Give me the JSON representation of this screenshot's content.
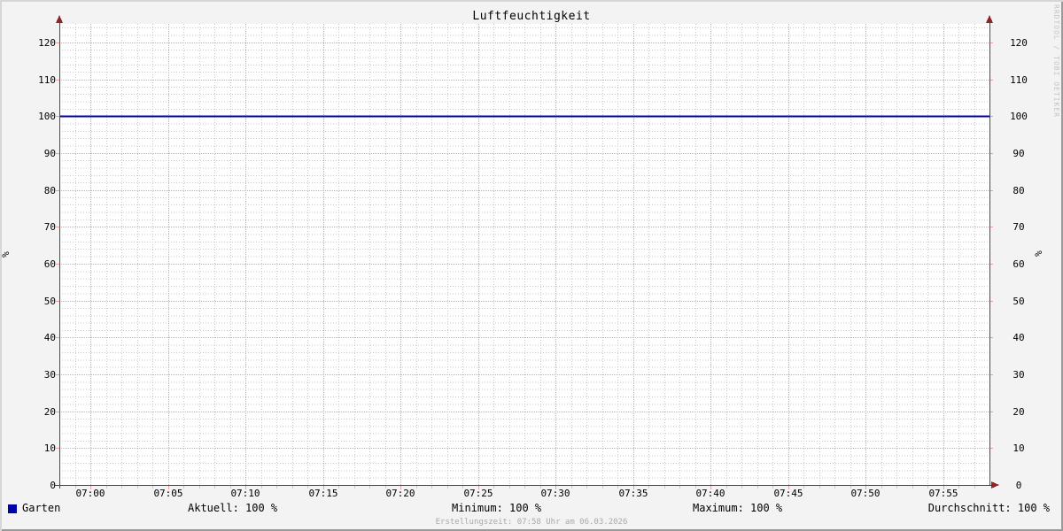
{
  "title": "Luftfeuchtigkeit",
  "watermark": "RRDTOOL / TOBI OETIKER",
  "footer": "Erstellungszeit: 07:58 Uhr am 06.03.2026",
  "legend": {
    "series": {
      "label": "Garten",
      "color": "#0000a8"
    },
    "stats": [
      {
        "label": "Aktuell",
        "value": "100 %",
        "text": "Aktuell: 100 %"
      },
      {
        "label": "Minimum",
        "value": "100 %",
        "text": "Minimum: 100 %"
      },
      {
        "label": "Maximum",
        "value": "100 %",
        "text": "Maximum: 100 %"
      },
      {
        "label": "Durchschnitt",
        "value": "100 %",
        "text": "Durchschnitt: 100 %"
      }
    ]
  },
  "chart_data": {
    "type": "line",
    "title": "Luftfeuchtigkeit",
    "xlabel": "",
    "ylabel": "%",
    "ylim": [
      0,
      125
    ],
    "y_ticks": [
      0,
      10,
      20,
      30,
      40,
      50,
      60,
      70,
      80,
      90,
      100,
      110,
      120
    ],
    "y_minor_step": 2,
    "x_start": "06:58",
    "x_end": "07:58",
    "x_minor_step_minutes": 1,
    "x_major_step_minutes": 5,
    "x_ticks": [
      "07:00",
      "07:05",
      "07:10",
      "07:15",
      "07:20",
      "07:25",
      "07:30",
      "07:35",
      "07:40",
      "07:45",
      "07:50",
      "07:55"
    ],
    "grid": true,
    "legend_position": "bottom",
    "series": [
      {
        "name": "Garten",
        "color": "#0000a8",
        "values": [
          {
            "x": "06:58",
            "y": 100
          },
          {
            "x": "07:58",
            "y": 100
          }
        ]
      }
    ]
  },
  "colors": {
    "background": "#f3f3f3",
    "canvas": "#ffffff",
    "major_grid": "#ef9c9c",
    "minor_grid": "#c9c9c9",
    "axis": "#4a4a4a",
    "arrow": "#8f2525",
    "line": "#0000a8",
    "text": "#000000",
    "muted": "#a9a9a9"
  }
}
